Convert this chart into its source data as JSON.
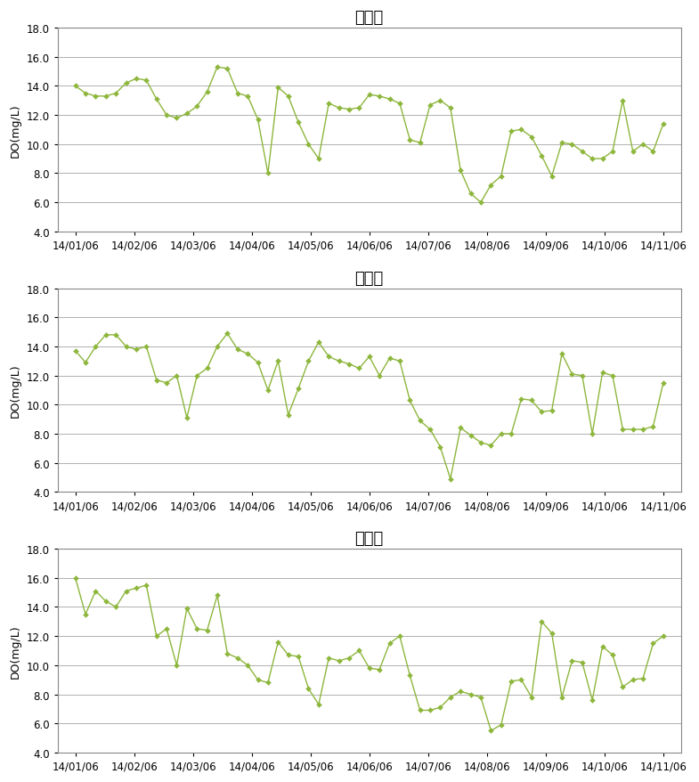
{
  "titles": [
    "세종보",
    "공주보",
    "백제보"
  ],
  "ylabel": "DO(mg/L)",
  "line_color": "#8db63c",
  "marker_color": "#8db63c",
  "ylim": [
    4.0,
    18.0
  ],
  "yticks": [
    4.0,
    6.0,
    8.0,
    10.0,
    12.0,
    14.0,
    16.0,
    18.0
  ],
  "xtick_labels": [
    "14/01/06",
    "14/02/06",
    "14/03/06",
    "14/04/06",
    "14/05/06",
    "14/06/06",
    "14/07/06",
    "14/08/06",
    "14/09/06",
    "14/10/06",
    "14/11/06"
  ],
  "sejong": [
    14.0,
    13.5,
    13.3,
    13.3,
    13.5,
    14.2,
    14.5,
    14.4,
    13.1,
    12.0,
    11.8,
    12.1,
    12.6,
    13.6,
    15.3,
    15.2,
    13.5,
    13.3,
    11.7,
    8.0,
    13.9,
    13.3,
    11.5,
    10.0,
    9.0,
    12.8,
    12.5,
    12.4,
    12.5,
    13.4,
    13.3,
    13.1,
    12.8,
    10.3,
    10.1,
    12.7,
    13.0,
    12.5,
    8.2,
    6.6,
    6.0,
    7.2,
    7.8,
    10.9,
    11.0,
    10.5,
    9.2,
    7.8,
    10.1,
    10.0,
    9.5,
    9.0,
    9.0,
    9.5,
    13.0,
    9.5,
    10.0,
    9.5,
    11.4
  ],
  "gongju": [
    13.7,
    12.9,
    14.0,
    14.8,
    14.8,
    14.0,
    13.8,
    14.0,
    11.7,
    11.5,
    12.0,
    9.1,
    12.0,
    12.5,
    14.0,
    14.9,
    13.8,
    13.5,
    12.9,
    11.0,
    13.0,
    9.3,
    11.1,
    13.0,
    14.3,
    13.3,
    13.0,
    12.8,
    12.5,
    13.3,
    12.0,
    13.2,
    13.0,
    10.3,
    8.9,
    8.3,
    7.1,
    4.9,
    8.4,
    7.9,
    7.4,
    7.2,
    8.0,
    8.0,
    10.4,
    10.3,
    9.5,
    9.6,
    13.5,
    12.1,
    12.0,
    8.0,
    12.2,
    12.0,
    8.3,
    8.3,
    8.3,
    8.5,
    11.5
  ],
  "baekje": [
    16.0,
    13.5,
    15.1,
    14.4,
    14.0,
    15.1,
    15.3,
    15.5,
    12.0,
    12.5,
    10.0,
    13.9,
    12.5,
    12.4,
    14.8,
    10.8,
    10.5,
    10.0,
    9.0,
    8.8,
    11.6,
    10.7,
    10.6,
    8.4,
    7.3,
    10.5,
    10.3,
    10.5,
    11.0,
    9.8,
    9.7,
    11.5,
    12.0,
    9.3,
    6.9,
    6.9,
    7.1,
    7.8,
    8.2,
    8.0,
    7.8,
    5.5,
    5.9,
    8.9,
    9.0,
    7.8,
    13.0,
    12.2,
    7.8,
    10.3,
    10.2,
    7.6,
    11.3,
    10.7,
    8.5,
    9.0,
    9.1,
    11.5,
    12.0
  ],
  "background_color": "#ffffff",
  "grid_color": "#b0b0b0",
  "title_fontsize": 13,
  "label_fontsize": 9,
  "tick_fontsize": 8.5,
  "border_color": "#888888"
}
